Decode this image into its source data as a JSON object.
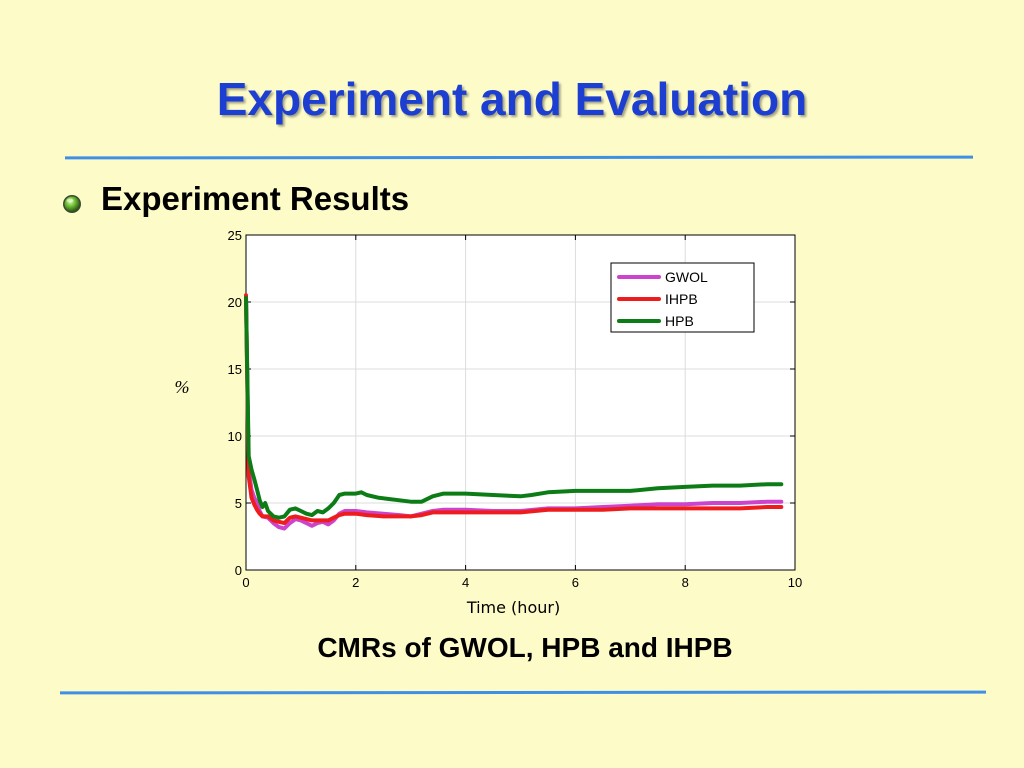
{
  "slide": {
    "title": "Experiment and Evaluation",
    "bullet_text": "Experiment Results",
    "caption": "CMRs of GWOL, HPB and IHPB",
    "colors": {
      "background": "#fdfbc7",
      "title": "#1c3fd2",
      "rule": "#3f8fe6"
    }
  },
  "chart_data": {
    "type": "line",
    "xlabel": "Time (hour)",
    "ylabel": "%",
    "xlim": [
      0,
      10
    ],
    "ylim": [
      0,
      25
    ],
    "xticks": [
      0,
      2,
      4,
      6,
      8,
      10
    ],
    "yticks": [
      0,
      5,
      10,
      15,
      20,
      25
    ],
    "grid": true,
    "legend_position": "top-right",
    "series": [
      {
        "name": "GWOL",
        "color": "#cc44cc",
        "points": [
          [
            0,
            20.2
          ],
          [
            0.05,
            7.5
          ],
          [
            0.1,
            6.0
          ],
          [
            0.15,
            5.4
          ],
          [
            0.2,
            5.0
          ],
          [
            0.25,
            4.4
          ],
          [
            0.3,
            4.0
          ],
          [
            0.4,
            3.9
          ],
          [
            0.5,
            3.5
          ],
          [
            0.6,
            3.2
          ],
          [
            0.7,
            3.1
          ],
          [
            0.8,
            3.5
          ],
          [
            0.9,
            3.8
          ],
          [
            1.0,
            3.7
          ],
          [
            1.1,
            3.5
          ],
          [
            1.2,
            3.3
          ],
          [
            1.3,
            3.5
          ],
          [
            1.4,
            3.6
          ],
          [
            1.5,
            3.4
          ],
          [
            1.6,
            3.7
          ],
          [
            1.7,
            4.2
          ],
          [
            1.8,
            4.4
          ],
          [
            2.0,
            4.4
          ],
          [
            2.2,
            4.3
          ],
          [
            2.5,
            4.2
          ],
          [
            2.8,
            4.1
          ],
          [
            3.0,
            4.0
          ],
          [
            3.2,
            4.2
          ],
          [
            3.4,
            4.4
          ],
          [
            3.6,
            4.5
          ],
          [
            4.0,
            4.5
          ],
          [
            4.5,
            4.4
          ],
          [
            5.0,
            4.4
          ],
          [
            5.5,
            4.6
          ],
          [
            6.0,
            4.6
          ],
          [
            6.5,
            4.7
          ],
          [
            7.0,
            4.8
          ],
          [
            7.5,
            4.9
          ],
          [
            8.0,
            4.9
          ],
          [
            8.5,
            5.0
          ],
          [
            9.0,
            5.0
          ],
          [
            9.5,
            5.1
          ],
          [
            9.75,
            5.1
          ]
        ]
      },
      {
        "name": "IHPB",
        "color": "#ee1c1c",
        "points": [
          [
            0,
            20.5
          ],
          [
            0.05,
            7.0
          ],
          [
            0.1,
            5.4
          ],
          [
            0.15,
            4.9
          ],
          [
            0.2,
            4.5
          ],
          [
            0.25,
            4.2
          ],
          [
            0.3,
            4.0
          ],
          [
            0.4,
            4.0
          ],
          [
            0.5,
            3.7
          ],
          [
            0.6,
            3.6
          ],
          [
            0.7,
            3.5
          ],
          [
            0.8,
            3.9
          ],
          [
            0.9,
            4.0
          ],
          [
            1.0,
            3.9
          ],
          [
            1.1,
            3.8
          ],
          [
            1.2,
            3.7
          ],
          [
            1.3,
            3.7
          ],
          [
            1.4,
            3.7
          ],
          [
            1.5,
            3.7
          ],
          [
            1.6,
            3.9
          ],
          [
            1.7,
            4.1
          ],
          [
            1.8,
            4.2
          ],
          [
            2.0,
            4.2
          ],
          [
            2.2,
            4.1
          ],
          [
            2.5,
            4.0
          ],
          [
            2.8,
            4.0
          ],
          [
            3.0,
            4.0
          ],
          [
            3.2,
            4.1
          ],
          [
            3.4,
            4.3
          ],
          [
            3.6,
            4.3
          ],
          [
            4.0,
            4.3
          ],
          [
            4.5,
            4.3
          ],
          [
            5.0,
            4.3
          ],
          [
            5.5,
            4.5
          ],
          [
            6.0,
            4.5
          ],
          [
            6.5,
            4.5
          ],
          [
            7.0,
            4.6
          ],
          [
            7.5,
            4.6
          ],
          [
            8.0,
            4.6
          ],
          [
            8.5,
            4.6
          ],
          [
            9.0,
            4.6
          ],
          [
            9.5,
            4.7
          ],
          [
            9.75,
            4.7
          ]
        ]
      },
      {
        "name": "HPB",
        "color": "#0c7d16",
        "points": [
          [
            0,
            20.3
          ],
          [
            0.05,
            8.5
          ],
          [
            0.1,
            7.5
          ],
          [
            0.15,
            6.8
          ],
          [
            0.2,
            6.0
          ],
          [
            0.25,
            5.2
          ],
          [
            0.3,
            4.7
          ],
          [
            0.35,
            5.0
          ],
          [
            0.4,
            4.4
          ],
          [
            0.5,
            4.0
          ],
          [
            0.6,
            3.9
          ],
          [
            0.7,
            4.0
          ],
          [
            0.8,
            4.5
          ],
          [
            0.9,
            4.6
          ],
          [
            1.0,
            4.4
          ],
          [
            1.1,
            4.2
          ],
          [
            1.2,
            4.1
          ],
          [
            1.3,
            4.4
          ],
          [
            1.4,
            4.3
          ],
          [
            1.5,
            4.6
          ],
          [
            1.6,
            5.0
          ],
          [
            1.7,
            5.6
          ],
          [
            1.8,
            5.7
          ],
          [
            2.0,
            5.7
          ],
          [
            2.1,
            5.8
          ],
          [
            2.2,
            5.6
          ],
          [
            2.4,
            5.4
          ],
          [
            2.6,
            5.3
          ],
          [
            2.8,
            5.2
          ],
          [
            3.0,
            5.1
          ],
          [
            3.2,
            5.1
          ],
          [
            3.4,
            5.5
          ],
          [
            3.6,
            5.7
          ],
          [
            4.0,
            5.7
          ],
          [
            4.5,
            5.6
          ],
          [
            5.0,
            5.5
          ],
          [
            5.2,
            5.6
          ],
          [
            5.5,
            5.8
          ],
          [
            6.0,
            5.9
          ],
          [
            6.5,
            5.9
          ],
          [
            7.0,
            5.9
          ],
          [
            7.5,
            6.1
          ],
          [
            8.0,
            6.2
          ],
          [
            8.5,
            6.3
          ],
          [
            9.0,
            6.3
          ],
          [
            9.5,
            6.4
          ],
          [
            9.75,
            6.4
          ]
        ]
      }
    ]
  }
}
